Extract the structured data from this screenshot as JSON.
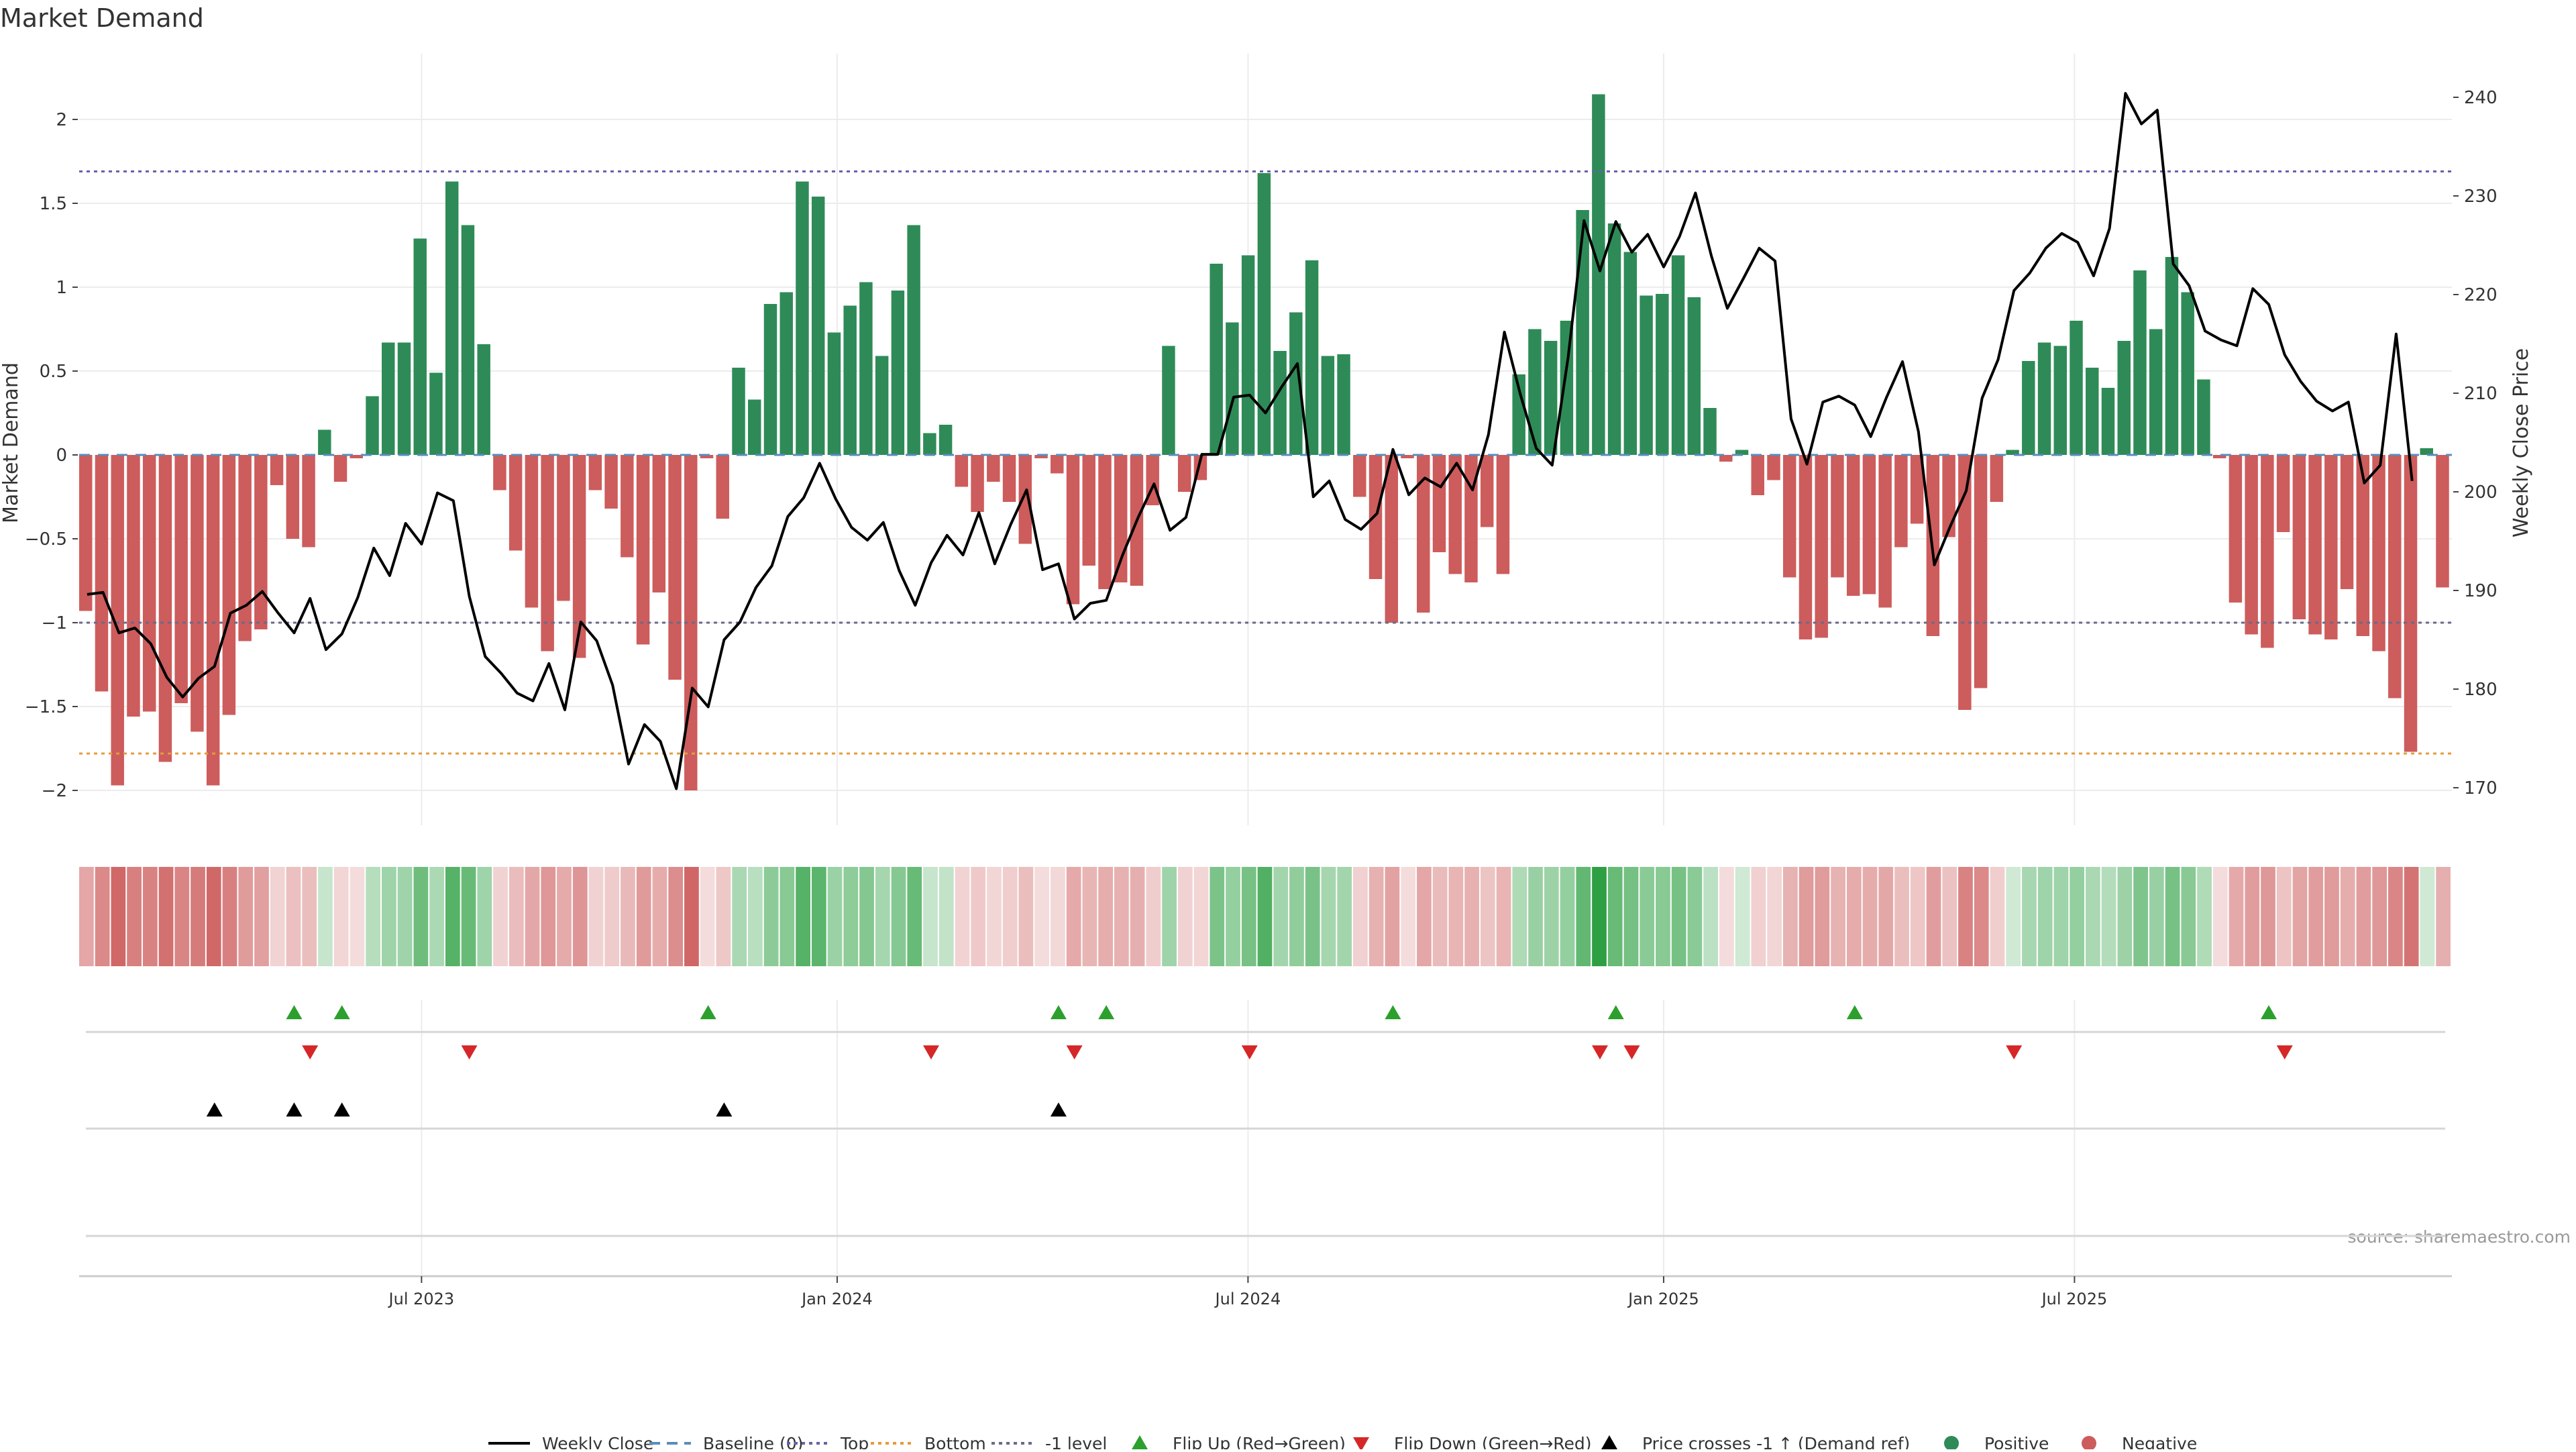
{
  "chart_data": {
    "type": "bar",
    "title": "Market Demand",
    "ylabel_left": "Market Demand",
    "ylabel_right": "Weekly Close Price",
    "source": "source: sharemaestro.com",
    "ylim_left": [
      -2.2,
      2.4
    ],
    "ylim_right": [
      168,
      244
    ],
    "yticks_left": [
      2,
      1.5,
      1,
      0.5,
      0,
      -0.5,
      -1,
      -1.5,
      -2
    ],
    "ytick_labels_left": [
      "2",
      "1.5",
      "1",
      "0.5",
      "0",
      "−0.5",
      "−1",
      "−1.5",
      "−2"
    ],
    "yticks_right": [
      240,
      230,
      220,
      210,
      200,
      190,
      180,
      170
    ],
    "ytick_labels_right": [
      "240",
      "230",
      "220",
      "210",
      "200",
      "190",
      "180",
      "170"
    ],
    "x_tick_labels": [
      "Jul 2023",
      "Jan 2024",
      "Jul 2024",
      "Jan 2025",
      "Jul 2025"
    ],
    "x_tick_weeks": [
      21.5,
      47.6,
      73.4,
      99.5,
      125.3
    ],
    "levels": {
      "top": 1.69,
      "bottom": -1.78,
      "minus_one": -1.0,
      "baseline": 0
    },
    "colors": {
      "positive": "#2e8b57",
      "negative": "#cd5c5c",
      "price": "#000000",
      "top": "#6b5fa8",
      "bottom": "#e59b3a",
      "minus_one": "#6a6a8a",
      "baseline": "#5a8dbb",
      "flip_up": "#2ca02c",
      "flip_down": "#d62728",
      "cross": "#000000"
    },
    "demand": [
      -0.93,
      -1.41,
      -1.97,
      -1.56,
      -1.53,
      -1.83,
      -1.48,
      -1.65,
      -1.97,
      -1.55,
      -1.11,
      -1.04,
      -0.18,
      -0.5,
      -0.55,
      0.15,
      -0.16,
      -0.02,
      0.35,
      0.67,
      0.67,
      1.29,
      0.49,
      1.63,
      1.37,
      0.66,
      -0.21,
      -0.57,
      -0.91,
      -1.17,
      -0.87,
      -1.21,
      -0.21,
      -0.32,
      -0.61,
      -1.13,
      -0.82,
      -1.34,
      -2.0,
      -0.02,
      -0.38,
      0.52,
      0.33,
      0.9,
      0.97,
      1.63,
      1.54,
      0.73,
      0.89,
      1.03,
      0.59,
      0.98,
      1.37,
      0.13,
      0.18,
      -0.19,
      -0.34,
      -0.16,
      -0.28,
      -0.53,
      -0.02,
      -0.11,
      -0.89,
      -0.66,
      -0.8,
      -0.76,
      -0.78,
      -0.3,
      0.65,
      -0.22,
      -0.15,
      1.14,
      0.79,
      1.19,
      1.68,
      0.62,
      0.85,
      1.16,
      0.59,
      0.6,
      -0.25,
      -0.74,
      -1.0,
      -0.02,
      -0.94,
      -0.58,
      -0.71,
      -0.76,
      -0.43,
      -0.71,
      0.48,
      0.75,
      0.68,
      0.8,
      1.46,
      2.15,
      1.38,
      1.21,
      0.95,
      0.96,
      1.19,
      0.94,
      0.28,
      -0.04,
      0.03,
      -0.24,
      -0.15,
      -0.73,
      -1.1,
      -1.09,
      -0.73,
      -0.84,
      -0.83,
      -0.91,
      -0.55,
      -0.41,
      -1.08,
      -0.49,
      -1.52,
      -1.39,
      -0.28,
      0.03,
      0.56,
      0.67,
      0.65,
      0.8,
      0.52,
      0.4,
      0.68,
      1.1,
      0.75,
      1.18,
      0.97,
      0.45,
      -0.02,
      -0.88,
      -1.07,
      -1.15,
      -0.46,
      -0.98,
      -1.07,
      -1.1,
      -0.8,
      -1.08,
      -1.17,
      -1.45,
      -1.77,
      0.04,
      -0.79
    ],
    "close": [
      189.6,
      189.8,
      185.7,
      186.2,
      184.6,
      181.2,
      179.2,
      181.1,
      182.3,
      187.7,
      188.5,
      189.9,
      187.7,
      185.7,
      189.2,
      184.0,
      185.6,
      189.3,
      194.3,
      191.5,
      196.8,
      194.7,
      199.9,
      199.1,
      189.4,
      183.3,
      181.6,
      179.6,
      178.8,
      182.6,
      177.9,
      186.8,
      184.9,
      180.4,
      172.4,
      176.4,
      174.7,
      169.9,
      180.1,
      178.2,
      185.0,
      186.8,
      190.3,
      192.5,
      197.5,
      199.4,
      202.9,
      199.3,
      196.4,
      195.1,
      196.9,
      192.0,
      188.5,
      192.8,
      195.6,
      193.6,
      197.9,
      192.7,
      196.7,
      200.2,
      192.1,
      192.7,
      187.1,
      188.7,
      189.0,
      193.5,
      197.4,
      200.8,
      196.1,
      197.4,
      203.8,
      203.8,
      209.6,
      209.8,
      208.0,
      210.6,
      213.0,
      199.5,
      201.1,
      197.2,
      196.2,
      197.8,
      204.3,
      199.7,
      201.4,
      200.5,
      202.9,
      200.2,
      205.8,
      216.2,
      209.9,
      204.4,
      202.7,
      213.6,
      227.5,
      222.4,
      227.4,
      224.3,
      226.1,
      222.8,
      225.9,
      230.3,
      223.9,
      218.6,
      221.6,
      224.7,
      223.4,
      207.4,
      202.8,
      209.1,
      209.7,
      208.8,
      205.6,
      209.6,
      213.2,
      206.1,
      192.6,
      196.5,
      200.1,
      209.5,
      213.4,
      220.4,
      222.2,
      224.7,
      226.2,
      225.3,
      221.9,
      226.7,
      240.4,
      237.3,
      238.7,
      223.1,
      220.9,
      216.3,
      215.4,
      214.8,
      220.6,
      219.0,
      213.9,
      211.2,
      209.2,
      208.2,
      209.1,
      200.9,
      202.7,
      216.0,
      201.1
    ],
    "flip_up_weeks": [
      13,
      16,
      39,
      61,
      64,
      82,
      96,
      111,
      137
    ],
    "flip_down_weeks": [
      14,
      24,
      53,
      62,
      73,
      95,
      97,
      121,
      138
    ],
    "price_cross_weeks": [
      8,
      13,
      16,
      40,
      61
    ],
    "legend": [
      {
        "label": "Weekly Close",
        "kind": "line"
      },
      {
        "label": "Baseline (0)",
        "kind": "dash"
      },
      {
        "label": "Top",
        "kind": "dot-top"
      },
      {
        "label": "Bottom",
        "kind": "dot-bottom"
      },
      {
        "label": "-1 level",
        "kind": "dot-minus"
      },
      {
        "label": "Flip Up (Red→Green)",
        "kind": "tri-up"
      },
      {
        "label": "Flip Down (Green→Red)",
        "kind": "tri-down"
      },
      {
        "label": "Price crosses -1 ↑ (Demand ref)",
        "kind": "tri-black"
      },
      {
        "label": "Positive",
        "kind": "dot-pos"
      },
      {
        "label": "Negative",
        "kind": "dot-neg"
      }
    ]
  }
}
